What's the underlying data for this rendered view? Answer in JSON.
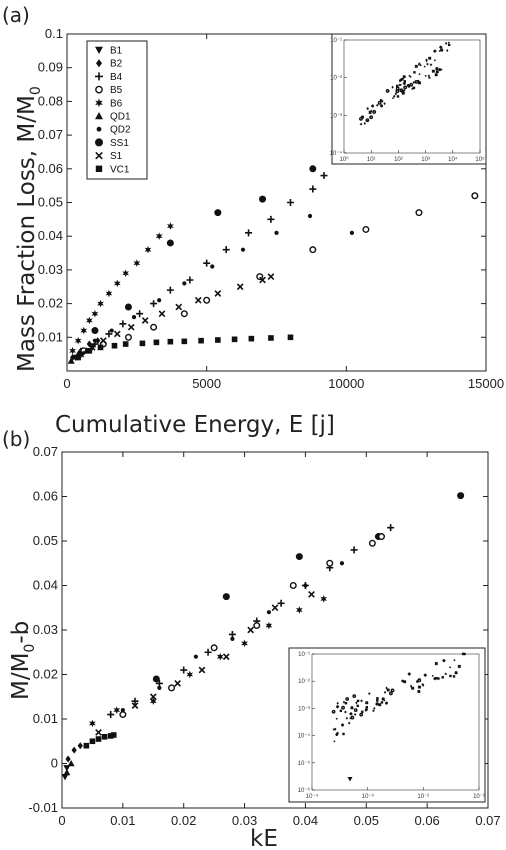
{
  "chart_data": [
    {
      "type": "scatter",
      "panel_label": "(a)",
      "xlabel": "Cumulative Energy, E [j]",
      "ylabel": "Mass Fraction Loss, M/M",
      "ylabel_sub": "0",
      "xlim": [
        0,
        15000
      ],
      "ylim": [
        0,
        0.1
      ],
      "xticks": [
        "0",
        "5000",
        "10000",
        "15000"
      ],
      "yticks": [
        "0.01",
        "0.02",
        "0.03",
        "0.04",
        "0.05",
        "0.06",
        "0.07",
        "0.08",
        "0.09",
        "0.1"
      ],
      "legend_position": "top-left",
      "series": [
        {
          "name": "B1",
          "marker": "triangle-down",
          "points": [
            [
              300,
              0.004
            ],
            [
              600,
              0.006
            ],
            [
              900,
              0.007
            ]
          ]
        },
        {
          "name": "B2",
          "marker": "diamond",
          "points": [
            [
              200,
              0.004
            ],
            [
              500,
              0.006
            ],
            [
              800,
              0.008
            ],
            [
              1100,
              0.009
            ]
          ]
        },
        {
          "name": "B4",
          "marker": "plus",
          "points": [
            [
              500,
              0.005
            ],
            [
              1000,
              0.008
            ],
            [
              1500,
              0.011
            ],
            [
              2000,
              0.014
            ],
            [
              2600,
              0.017
            ],
            [
              3100,
              0.02
            ],
            [
              3700,
              0.024
            ],
            [
              4400,
              0.027
            ],
            [
              5000,
              0.032
            ],
            [
              5700,
              0.036
            ],
            [
              6500,
              0.041
            ],
            [
              7300,
              0.045
            ],
            [
              8000,
              0.05
            ],
            [
              8800,
              0.054
            ],
            [
              9200,
              0.058
            ]
          ]
        },
        {
          "name": "B5",
          "marker": "circle-open",
          "points": [
            [
              600,
              0.006
            ],
            [
              1300,
              0.008
            ],
            [
              2200,
              0.01
            ],
            [
              3100,
              0.013
            ],
            [
              4200,
              0.017
            ],
            [
              5000,
              0.021
            ],
            [
              6900,
              0.028
            ],
            [
              8800,
              0.036
            ],
            [
              10700,
              0.042
            ],
            [
              12600,
              0.047
            ],
            [
              14600,
              0.052
            ]
          ]
        },
        {
          "name": "B6",
          "marker": "star",
          "points": [
            [
              200,
              0.006
            ],
            [
              400,
              0.009
            ],
            [
              600,
              0.012
            ],
            [
              800,
              0.015
            ],
            [
              1000,
              0.017
            ],
            [
              1200,
              0.02
            ],
            [
              1500,
              0.023
            ],
            [
              1800,
              0.026
            ],
            [
              2100,
              0.029
            ],
            [
              2500,
              0.032
            ],
            [
              2900,
              0.036
            ],
            [
              3300,
              0.04
            ],
            [
              3700,
              0.043
            ]
          ]
        },
        {
          "name": "QD1",
          "marker": "triangle-up",
          "points": [
            [
              150,
              0.003
            ],
            [
              400,
              0.005
            ],
            [
              700,
              0.006
            ]
          ]
        },
        {
          "name": "QD2",
          "marker": "dot",
          "points": [
            [
              1000,
              0.009
            ],
            [
              1600,
              0.012
            ],
            [
              2400,
              0.016
            ],
            [
              3300,
              0.021
            ],
            [
              4200,
              0.026
            ],
            [
              5200,
              0.031
            ],
            [
              6300,
              0.036
            ],
            [
              7500,
              0.041
            ],
            [
              8700,
              0.046
            ],
            [
              10200,
              0.041
            ]
          ]
        },
        {
          "name": "SS1",
          "marker": "circle-filled",
          "points": [
            [
              1000,
              0.012
            ],
            [
              2200,
              0.019
            ],
            [
              3700,
              0.038
            ],
            [
              5400,
              0.047
            ],
            [
              7000,
              0.051
            ],
            [
              8800,
              0.06
            ]
          ]
        },
        {
          "name": "S1",
          "marker": "cross",
          "points": [
            [
              500,
              0.005
            ],
            [
              900,
              0.007
            ],
            [
              1300,
              0.009
            ],
            [
              1800,
              0.011
            ],
            [
              2300,
              0.013
            ],
            [
              2800,
              0.015
            ],
            [
              3400,
              0.017
            ],
            [
              4000,
              0.019
            ],
            [
              4700,
              0.021
            ],
            [
              5400,
              0.023
            ],
            [
              6200,
              0.025
            ],
            [
              7000,
              0.027
            ],
            [
              7300,
              0.028
            ]
          ]
        },
        {
          "name": "VC1",
          "marker": "square",
          "points": [
            [
              400,
              0.004
            ],
            [
              800,
              0.006
            ],
            [
              1200,
              0.007
            ],
            [
              1700,
              0.0075
            ],
            [
              2100,
              0.008
            ],
            [
              2700,
              0.0082
            ],
            [
              3200,
              0.0085
            ],
            [
              3700,
              0.0087
            ],
            [
              4200,
              0.0088
            ],
            [
              4800,
              0.009
            ],
            [
              5400,
              0.0092
            ],
            [
              6000,
              0.0094
            ],
            [
              6600,
              0.0096
            ],
            [
              7300,
              0.0098
            ],
            [
              8000,
              0.01
            ]
          ]
        }
      ]
    },
    {
      "type": "scatter",
      "panel_label": "(b)",
      "xlabel": "kE",
      "ylabel": "M/M",
      "ylabel_sub": "0",
      "ylabel_suffix": "-b",
      "xlim": [
        0,
        0.07
      ],
      "ylim": [
        -0.01,
        0.07
      ],
      "xticks": [
        "0",
        "0.01",
        "0.02",
        "0.03",
        "0.04",
        "0.05",
        "0.06",
        "0.07"
      ],
      "yticks": [
        "-0.01",
        "0",
        "0.01",
        "0.02",
        "0.03",
        "0.04",
        "0.05",
        "0.06",
        "0.07"
      ],
      "series": [
        {
          "name": "SS1",
          "marker": "circle-filled",
          "points": [
            [
              0.0155,
              0.019
            ],
            [
              0.027,
              0.0375
            ],
            [
              0.039,
              0.0465
            ],
            [
              0.052,
              0.051
            ],
            [
              0.0655,
              0.0602
            ]
          ]
        },
        {
          "name": "B4",
          "marker": "plus",
          "points": [
            [
              0.008,
              0.011
            ],
            [
              0.012,
              0.014
            ],
            [
              0.016,
              0.018
            ],
            [
              0.02,
              0.021
            ],
            [
              0.024,
              0.025
            ],
            [
              0.028,
              0.029
            ],
            [
              0.032,
              0.032
            ],
            [
              0.036,
              0.036
            ],
            [
              0.04,
              0.04
            ],
            [
              0.044,
              0.044
            ],
            [
              0.048,
              0.048
            ],
            [
              0.052,
              0.051
            ],
            [
              0.054,
              0.053
            ]
          ]
        },
        {
          "name": "B5",
          "marker": "circle-open",
          "points": [
            [
              0.01,
              0.011
            ],
            [
              0.018,
              0.017
            ],
            [
              0.025,
              0.026
            ],
            [
              0.032,
              0.031
            ],
            [
              0.038,
              0.04
            ],
            [
              0.044,
              0.045
            ],
            [
              0.051,
              0.0495
            ],
            [
              0.0525,
              0.051
            ]
          ]
        },
        {
          "name": "QD2",
          "marker": "dot",
          "points": [
            [
              0.01,
              0.012
            ],
            [
              0.016,
              0.017
            ],
            [
              0.022,
              0.024
            ],
            [
              0.028,
              0.028
            ],
            [
              0.034,
              0.034
            ],
            [
              0.04,
              0.04
            ],
            [
              0.046,
              0.045
            ]
          ]
        },
        {
          "name": "S1",
          "marker": "cross",
          "points": [
            [
              0.006,
              0.007
            ],
            [
              0.012,
              0.013
            ],
            [
              0.015,
              0.015
            ],
            [
              0.019,
              0.018
            ],
            [
              0.023,
              0.021
            ],
            [
              0.027,
              0.024
            ],
            [
              0.031,
              0.03
            ],
            [
              0.035,
              0.035
            ],
            [
              0.041,
              0.038
            ]
          ]
        },
        {
          "name": "B6",
          "marker": "star",
          "points": [
            [
              0.005,
              0.009
            ],
            [
              0.009,
              0.012
            ],
            [
              0.015,
              0.014
            ],
            [
              0.021,
              0.02
            ],
            [
              0.026,
              0.024
            ],
            [
              0.03,
              0.027
            ],
            [
              0.034,
              0.031
            ],
            [
              0.039,
              0.0345
            ],
            [
              0.043,
              0.037
            ]
          ]
        },
        {
          "name": "VC1",
          "marker": "square",
          "points": [
            [
              0.004,
              0.004
            ],
            [
              0.005,
              0.005
            ],
            [
              0.006,
              0.0055
            ],
            [
              0.007,
              0.006
            ],
            [
              0.008,
              0.0062
            ],
            [
              0.0085,
              0.0064
            ]
          ]
        },
        {
          "name": "B1",
          "marker": "triangle-down",
          "points": [
            [
              0.0005,
              -0.003
            ],
            [
              0.0008,
              -0.001
            ]
          ]
        },
        {
          "name": "B2",
          "marker": "diamond",
          "points": [
            [
              0.001,
              0.001
            ],
            [
              0.002,
              0.003
            ],
            [
              0.003,
              0.004
            ]
          ]
        },
        {
          "name": "QD1",
          "marker": "triangle-up",
          "points": [
            [
              0.0008,
              -0.002
            ],
            [
              0.0015,
              0.0
            ]
          ]
        }
      ]
    }
  ],
  "insets": [
    {
      "panel": "(a)",
      "xticks": [
        "10⁰",
        "10¹",
        "10²",
        "10³",
        "10⁴",
        "10⁵"
      ],
      "yticks": [
        "10⁻¹",
        "10⁻²",
        "10⁻³",
        "10⁻⁴"
      ]
    },
    {
      "panel": "(b)",
      "xticks": [
        "10⁻⁴",
        "10⁻³",
        "10⁻²",
        "10⁻¹"
      ],
      "yticks": [
        "10⁻¹",
        "10⁻²",
        "10⁻³",
        "10⁻⁴",
        "10⁻⁵",
        "10⁻⁶"
      ]
    }
  ]
}
